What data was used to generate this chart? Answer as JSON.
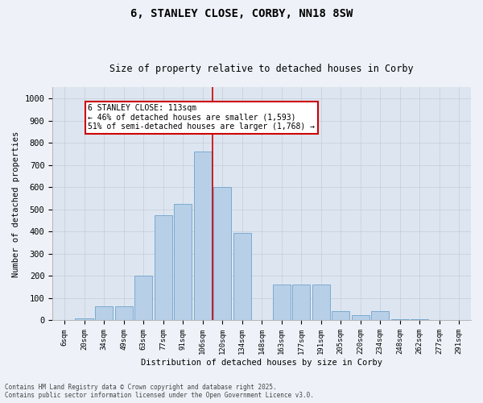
{
  "title": "6, STANLEY CLOSE, CORBY, NN18 8SW",
  "subtitle": "Size of property relative to detached houses in Corby",
  "xlabel": "Distribution of detached houses by size in Corby",
  "ylabel": "Number of detached properties",
  "bar_labels": [
    "6sqm",
    "20sqm",
    "34sqm",
    "49sqm",
    "63sqm",
    "77sqm",
    "91sqm",
    "106sqm",
    "120sqm",
    "134sqm",
    "148sqm",
    "163sqm",
    "177sqm",
    "191sqm",
    "205sqm",
    "220sqm",
    "234sqm",
    "248sqm",
    "262sqm",
    "277sqm",
    "291sqm"
  ],
  "bar_heights": [
    0,
    10,
    65,
    65,
    200,
    475,
    525,
    760,
    600,
    395,
    0,
    160,
    160,
    160,
    40,
    25,
    42,
    5,
    5,
    3,
    2
  ],
  "bar_color": "#b8cfe8",
  "bar_edge_color": "#7aaad0",
  "bg_color": "#dde6f0",
  "grid_color": "#c8d0dc",
  "annotation_text_line1": "6 STANLEY CLOSE: 113sqm",
  "annotation_text_line2": "← 46% of detached houses are smaller (1,593)",
  "annotation_text_line3": "51% of semi-detached houses are larger (1,768) →",
  "vline_color": "#cc0000",
  "annotation_box_edge_color": "#cc0000",
  "vline_x": 7.5,
  "ylim": [
    0,
    1050
  ],
  "yticks": [
    0,
    100,
    200,
    300,
    400,
    500,
    600,
    700,
    800,
    900,
    1000
  ],
  "footer_line1": "Contains HM Land Registry data © Crown copyright and database right 2025.",
  "footer_line2": "Contains public sector information licensed under the Open Government Licence v3.0."
}
